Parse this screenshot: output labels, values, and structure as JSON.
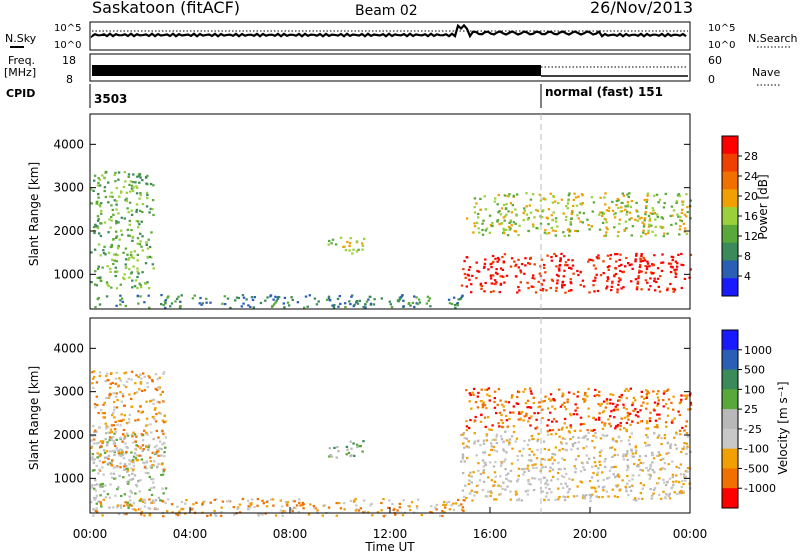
{
  "header": {
    "site": "Saskatoon (fitACF)",
    "beam": "Beam 02",
    "date": "26/Nov/2013"
  },
  "noise_panel": {
    "left_label": "N.Sky",
    "right_label": "N.Search",
    "left_ticks": [
      "10^5",
      "10^0"
    ],
    "right_ticks": [
      "10^5",
      "10^0"
    ]
  },
  "freq_panel": {
    "left_label_1": "Freq.",
    "left_label_2": "[MHz]",
    "right_label": "Nave",
    "left_ticks": [
      "18",
      "8"
    ],
    "right_ticks": [
      "60",
      "0"
    ]
  },
  "cpid_panel": {
    "label": "CPID",
    "cpid_1": "3503",
    "cpid_2": "normal (fast) 151"
  },
  "x_axis": {
    "label": "Time UT",
    "ticks": [
      "00:00",
      "04:00",
      "08:00",
      "12:00",
      "16:00",
      "20:00",
      "00:00"
    ]
  },
  "colors": {
    "power": [
      "#1a1aff",
      "#2b5fb5",
      "#3a8a5a",
      "#5aa83a",
      "#9ad13a",
      "#f0a000",
      "#f07000",
      "#f04000",
      "#ff0000"
    ],
    "velocity": [
      "#1a1aff",
      "#2b5fb5",
      "#3a8a5a",
      "#5aa83a",
      "#b8b8b8",
      "#c8c8c8",
      "#f0a000",
      "#f07000",
      "#ff0000"
    ]
  },
  "chart_data": [
    {
      "type": "heatmap",
      "name": "power",
      "xlabel": "",
      "ylabel": "Slant Range [km]",
      "xlim": [
        0,
        24
      ],
      "ylim": [
        200,
        4700
      ],
      "y_ticks": [
        "1000",
        "2000",
        "3000",
        "4000"
      ],
      "colorbar_label": "Power [dB]",
      "colorbar_ticks": [
        "4",
        "8",
        "12",
        "16",
        "20",
        "24",
        "28"
      ],
      "scatter_regions": [
        {
          "t0": 0.0,
          "t1": 2.5,
          "r0": 700,
          "r1": 3400,
          "level": 3
        },
        {
          "t0": 9.5,
          "t1": 11.0,
          "r0": 1500,
          "r1": 1900,
          "level": 4
        },
        {
          "t0": 14.8,
          "t1": 24.0,
          "r0": 600,
          "r1": 1500,
          "level": 8
        },
        {
          "t0": 15.0,
          "t1": 24.0,
          "r0": 1900,
          "r1": 2900,
          "level": 4
        },
        {
          "t0": 0.0,
          "t1": 15.0,
          "r0": 250,
          "r1": 550,
          "level": 2
        }
      ]
    },
    {
      "type": "heatmap",
      "name": "velocity",
      "xlabel": "Time UT",
      "ylabel": "Slant Range [km]",
      "xlim": [
        0,
        24
      ],
      "ylim": [
        200,
        4700
      ],
      "y_ticks": [
        "1000",
        "2000",
        "3000",
        "4000"
      ],
      "colorbar_label": "Velocity [m s⁻¹]",
      "colorbar_ticks": [
        "1000",
        "500",
        "100",
        "25",
        "-25",
        "-100",
        "-500",
        "-1000"
      ],
      "scatter_regions": [
        {
          "t0": 0.0,
          "t1": 3.0,
          "r0": 300,
          "r1": 2100,
          "level": 4
        },
        {
          "t0": 0.0,
          "t1": 3.0,
          "r0": 1200,
          "r1": 3500,
          "level": 6
        },
        {
          "t0": 9.5,
          "t1": 11.0,
          "r0": 1500,
          "r1": 1900,
          "level": 3
        },
        {
          "t0": 14.8,
          "t1": 24.0,
          "r0": 500,
          "r1": 2100,
          "level": 5
        },
        {
          "t0": 15.0,
          "t1": 24.0,
          "r0": 2100,
          "r1": 3100,
          "level": 7
        },
        {
          "t0": 0.0,
          "t1": 15.0,
          "r0": 150,
          "r1": 550,
          "level": 6
        }
      ]
    }
  ]
}
